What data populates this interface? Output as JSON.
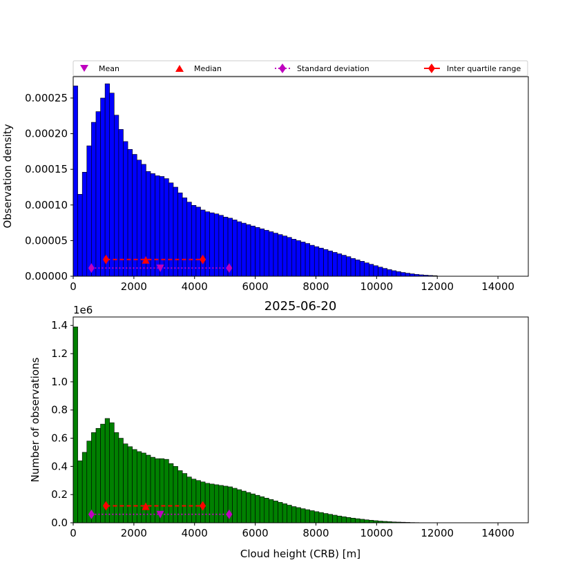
{
  "chart_data": [
    {
      "type": "bar",
      "title": "",
      "xlabel": "",
      "ylabel": "Observation density",
      "xlim": [
        0,
        15000
      ],
      "ylim": [
        0,
        0.00028
      ],
      "bin_width": 150,
      "bar_color": "#0000ff",
      "grid": false,
      "x_ticks": [
        "0",
        "2000",
        "4000",
        "6000",
        "8000",
        "10000",
        "12000",
        "14000"
      ],
      "y_ticks": [
        "0.00000",
        "0.00005",
        "0.00010",
        "0.00015",
        "0.00020",
        "0.00025"
      ],
      "values": [
        0.000267,
        0.000115,
        0.000146,
        0.000183,
        0.000216,
        0.000231,
        0.00025,
        0.00027,
        0.000257,
        0.000226,
        0.000206,
        0.000189,
        0.000178,
        0.000171,
        0.000163,
        0.000157,
        0.000147,
        0.000144,
        0.000141,
        0.00014,
        0.000137,
        0.000131,
        0.000125,
        0.000117,
        0.00011,
        0.000104,
        9.95e-05,
        9.7e-05,
        9.3e-05,
        9.05e-05,
        8.9e-05,
        8.75e-05,
        8.55e-05,
        8.3e-05,
        8.15e-05,
        7.9e-05,
        7.65e-05,
        7.45e-05,
        7.25e-05,
        7.05e-05,
        6.85e-05,
        6.65e-05,
        6.45e-05,
        6.25e-05,
        6.05e-05,
        5.85e-05,
        5.65e-05,
        5.45e-05,
        5.2e-05,
        5e-05,
        4.8e-05,
        4.6e-05,
        4.35e-05,
        4.15e-05,
        3.95e-05,
        3.75e-05,
        3.55e-05,
        3.35e-05,
        3.15e-05,
        2.95e-05,
        2.75e-05,
        2.5e-05,
        2.3e-05,
        2.1e-05,
        1.88e-05,
        1.68e-05,
        1.48e-05,
        1.28e-05,
        1.1e-05,
        9.3e-06,
        7.8e-06,
        6.5e-06,
        5.3e-06,
        4.3e-06,
        3.4e-06,
        2.6e-06,
        2e-06,
        1.5e-06,
        1.1e-06,
        8e-07
      ],
      "markers": {
        "mean": {
          "x": 2870,
          "y": 1.15e-05
        },
        "median": {
          "x": 2390,
          "y": 2.25e-05
        },
        "std_range": [
          600,
          5140
        ],
        "std_y": 1.15e-05,
        "iqr_range": [
          1080,
          4270
        ],
        "iqr_y": 2.35e-05
      }
    },
    {
      "type": "bar",
      "title": "2025-06-20",
      "xlabel": "Cloud height (CRB) [m]",
      "ylabel": "Number of observations",
      "y_offset_label": "1e6",
      "xlim": [
        0,
        15000
      ],
      "ylim": [
        0,
        1.46
      ],
      "bin_width": 150,
      "bar_color": "#008000",
      "grid": false,
      "x_ticks": [
        "0",
        "2000",
        "4000",
        "6000",
        "8000",
        "10000",
        "12000",
        "14000"
      ],
      "y_ticks": [
        "0.0",
        "0.2",
        "0.4",
        "0.6",
        "0.8",
        "1.0",
        "1.2",
        "1.4"
      ],
      "values": [
        1.39,
        0.44,
        0.5,
        0.58,
        0.64,
        0.67,
        0.7,
        0.74,
        0.71,
        0.64,
        0.6,
        0.56,
        0.54,
        0.52,
        0.505,
        0.495,
        0.48,
        0.465,
        0.455,
        0.455,
        0.45,
        0.42,
        0.4,
        0.37,
        0.35,
        0.325,
        0.31,
        0.3,
        0.29,
        0.28,
        0.275,
        0.27,
        0.265,
        0.26,
        0.255,
        0.245,
        0.235,
        0.225,
        0.215,
        0.205,
        0.195,
        0.185,
        0.175,
        0.165,
        0.155,
        0.145,
        0.135,
        0.125,
        0.115,
        0.108,
        0.1,
        0.093,
        0.086,
        0.079,
        0.073,
        0.066,
        0.06,
        0.054,
        0.048,
        0.043,
        0.038,
        0.033,
        0.029,
        0.025,
        0.021,
        0.018,
        0.015,
        0.012,
        0.01,
        0.008,
        0.006,
        0.005,
        0.004,
        0.003,
        0.002,
        0.0015,
        0.001,
        0.0007,
        0.0005,
        0.0003
      ],
      "markers": {
        "mean": {
          "x": 2870,
          "y": 0.06
        },
        "median": {
          "x": 2390,
          "y": 0.115
        },
        "std_range": [
          600,
          5140
        ],
        "std_y": 0.06,
        "iqr_range": [
          1080,
          4270
        ],
        "iqr_y": 0.12
      }
    }
  ],
  "legend": {
    "placement": "top",
    "items": [
      {
        "key": "mean",
        "label": "Mean",
        "color": "#bf00bf",
        "symbol": "triangle-down"
      },
      {
        "key": "median",
        "label": "Median",
        "color": "#ff0000",
        "symbol": "triangle-up"
      },
      {
        "key": "std",
        "label": "Standard deviation",
        "color": "#bf00bf",
        "symbol": "diamond-dotted-line"
      },
      {
        "key": "iqr",
        "label": "Inter quartile range",
        "color": "#ff0000",
        "symbol": "diamond-solid-line"
      }
    ]
  },
  "colors": {
    "mean": "#bf00bf",
    "median": "#ff0000",
    "std": "#bf00bf",
    "iqr": "#ff0000",
    "bar_edge": "#000000"
  }
}
